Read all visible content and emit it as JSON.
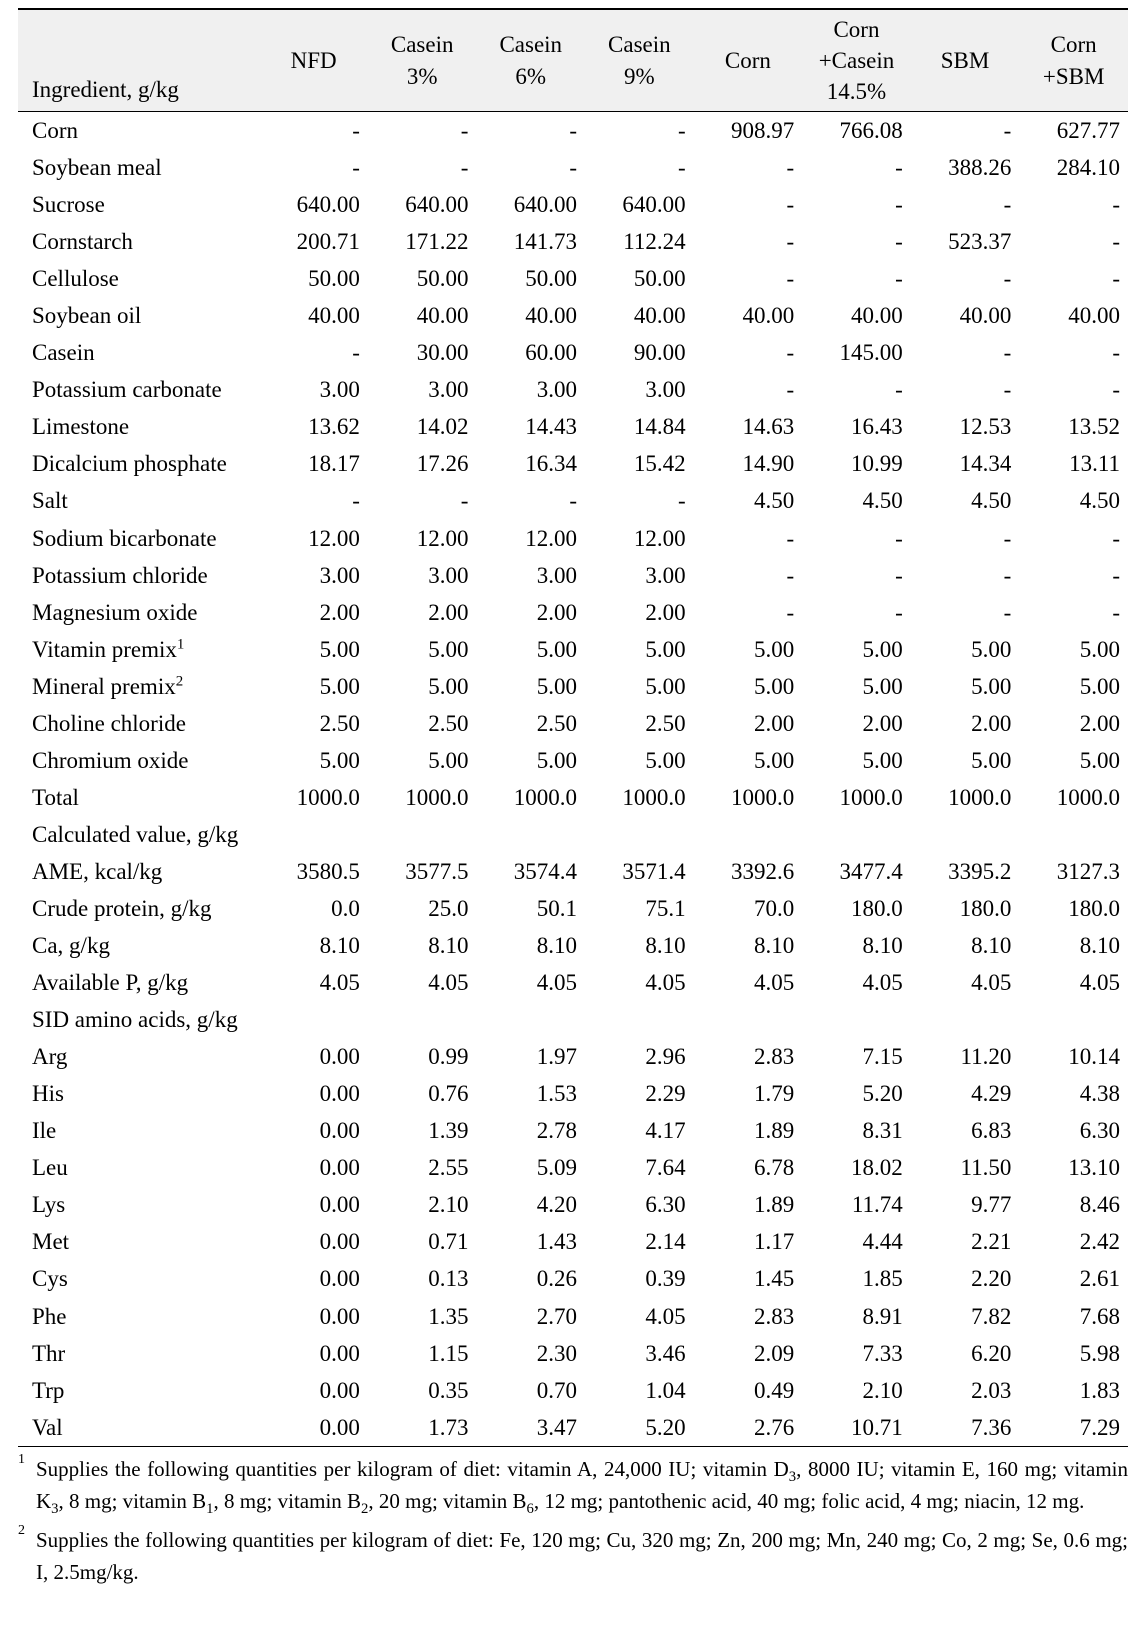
{
  "table": {
    "label_header": "Ingredient, g/kg",
    "columns": [
      "NFD",
      "Casein\n3%",
      "Casein\n6%",
      "Casein\n9%",
      "Corn",
      "Corn\n+Casein\n14.5%",
      "SBM",
      "Corn\n+SBM"
    ],
    "groups": [
      {
        "title": null,
        "rows": [
          {
            "label": "Corn",
            "v": [
              "-",
              "-",
              "-",
              "-",
              "908.97",
              "766.08",
              "-",
              "627.77"
            ]
          },
          {
            "label": "Soybean meal",
            "v": [
              "-",
              "-",
              "-",
              "-",
              "-",
              "-",
              "388.26",
              "284.10"
            ]
          },
          {
            "label": "Sucrose",
            "v": [
              "640.00",
              "640.00",
              "640.00",
              "640.00",
              "-",
              "-",
              "-",
              "-"
            ]
          },
          {
            "label": "Cornstarch",
            "v": [
              "200.71",
              "171.22",
              "141.73",
              "112.24",
              "-",
              "-",
              "523.37",
              "-"
            ]
          },
          {
            "label": "Cellulose",
            "v": [
              "50.00",
              "50.00",
              "50.00",
              "50.00",
              "-",
              "-",
              "-",
              "-"
            ]
          },
          {
            "label": "Soybean oil",
            "v": [
              "40.00",
              "40.00",
              "40.00",
              "40.00",
              "40.00",
              "40.00",
              "40.00",
              "40.00"
            ]
          },
          {
            "label": "Casein",
            "v": [
              "-",
              "30.00",
              "60.00",
              "90.00",
              "-",
              "145.00",
              "-",
              "-"
            ]
          },
          {
            "label": "Potassium carbonate",
            "v": [
              "3.00",
              "3.00",
              "3.00",
              "3.00",
              "-",
              "-",
              "-",
              "-"
            ]
          },
          {
            "label": "Limestone",
            "v": [
              "13.62",
              "14.02",
              "14.43",
              "14.84",
              "14.63",
              "16.43",
              "12.53",
              "13.52"
            ]
          },
          {
            "label": "Dicalcium phosphate",
            "v": [
              "18.17",
              "17.26",
              "16.34",
              "15.42",
              "14.90",
              "10.99",
              "14.34",
              "13.11"
            ]
          },
          {
            "label": "Salt",
            "v": [
              "-",
              "-",
              "-",
              "-",
              "4.50",
              "4.50",
              "4.50",
              "4.50"
            ]
          },
          {
            "label": "Sodium bicarbonate",
            "v": [
              "12.00",
              "12.00",
              "12.00",
              "12.00",
              "-",
              "-",
              "-",
              "-"
            ]
          },
          {
            "label": "Potassium chloride",
            "v": [
              "3.00",
              "3.00",
              "3.00",
              "3.00",
              "-",
              "-",
              "-",
              "-"
            ]
          },
          {
            "label": "Magnesium oxide",
            "v": [
              "2.00",
              "2.00",
              "2.00",
              "2.00",
              "-",
              "-",
              "-",
              "-"
            ]
          },
          {
            "label": "Vitamin premix",
            "sup": "1",
            "v": [
              "5.00",
              "5.00",
              "5.00",
              "5.00",
              "5.00",
              "5.00",
              "5.00",
              "5.00"
            ]
          },
          {
            "label": "Mineral premix",
            "sup": "2",
            "v": [
              "5.00",
              "5.00",
              "5.00",
              "5.00",
              "5.00",
              "5.00",
              "5.00",
              "5.00"
            ]
          },
          {
            "label": "Choline chloride",
            "v": [
              "2.50",
              "2.50",
              "2.50",
              "2.50",
              "2.00",
              "2.00",
              "2.00",
              "2.00"
            ]
          },
          {
            "label": "Chromium oxide",
            "v": [
              "5.00",
              "5.00",
              "5.00",
              "5.00",
              "5.00",
              "5.00",
              "5.00",
              "5.00"
            ]
          },
          {
            "label": "Total",
            "v": [
              "1000.0",
              "1000.0",
              "1000.0",
              "1000.0",
              "1000.0",
              "1000.0",
              "1000.0",
              "1000.0"
            ]
          }
        ]
      },
      {
        "title": "Calculated value, g/kg",
        "rows": [
          {
            "label": "AME, kcal/kg",
            "v": [
              "3580.5",
              "3577.5",
              "3574.4",
              "3571.4",
              "3392.6",
              "3477.4",
              "3395.2",
              "3127.3"
            ]
          },
          {
            "label": "Crude protein, g/kg",
            "v": [
              "0.0",
              "25.0",
              "50.1",
              "75.1",
              "70.0",
              "180.0",
              "180.0",
              "180.0"
            ]
          },
          {
            "label": "Ca, g/kg",
            "v": [
              "8.10",
              "8.10",
              "8.10",
              "8.10",
              "8.10",
              "8.10",
              "8.10",
              "8.10"
            ]
          },
          {
            "label": "Available P, g/kg",
            "v": [
              "4.05",
              "4.05",
              "4.05",
              "4.05",
              "4.05",
              "4.05",
              "4.05",
              "4.05"
            ]
          }
        ]
      },
      {
        "title": "SID amino acids, g/kg",
        "rows": [
          {
            "label": "Arg",
            "v": [
              "0.00",
              "0.99",
              "1.97",
              "2.96",
              "2.83",
              "7.15",
              "11.20",
              "10.14"
            ]
          },
          {
            "label": "His",
            "v": [
              "0.00",
              "0.76",
              "1.53",
              "2.29",
              "1.79",
              "5.20",
              "4.29",
              "4.38"
            ]
          },
          {
            "label": "Ile",
            "v": [
              "0.00",
              "1.39",
              "2.78",
              "4.17",
              "1.89",
              "8.31",
              "6.83",
              "6.30"
            ]
          },
          {
            "label": "Leu",
            "v": [
              "0.00",
              "2.55",
              "5.09",
              "7.64",
              "6.78",
              "18.02",
              "11.50",
              "13.10"
            ]
          },
          {
            "label": "Lys",
            "v": [
              "0.00",
              "2.10",
              "4.20",
              "6.30",
              "1.89",
              "11.74",
              "9.77",
              "8.46"
            ]
          },
          {
            "label": "Met",
            "v": [
              "0.00",
              "0.71",
              "1.43",
              "2.14",
              "1.17",
              "4.44",
              "2.21",
              "2.42"
            ]
          },
          {
            "label": "Cys",
            "v": [
              "0.00",
              "0.13",
              "0.26",
              "0.39",
              "1.45",
              "1.85",
              "2.20",
              "2.61"
            ]
          },
          {
            "label": "Phe",
            "v": [
              "0.00",
              "1.35",
              "2.70",
              "4.05",
              "2.83",
              "8.91",
              "7.82",
              "7.68"
            ]
          },
          {
            "label": "Thr",
            "v": [
              "0.00",
              "1.15",
              "2.30",
              "3.46",
              "2.09",
              "7.33",
              "6.20",
              "5.98"
            ]
          },
          {
            "label": "Trp",
            "v": [
              "0.00",
              "0.35",
              "0.70",
              "1.04",
              "0.49",
              "2.10",
              "2.03",
              "1.83"
            ]
          },
          {
            "label": "Val",
            "v": [
              "0.00",
              "1.73",
              "3.47",
              "5.20",
              "2.76",
              "10.71",
              "7.36",
              "7.29"
            ]
          }
        ]
      }
    ]
  },
  "footnotes": [
    {
      "marker": "1",
      "html": "Supplies the following quantities per kilogram of diet: vitamin A, 24,000 IU; vitamin D<sub class=\"s\">3</sub>, 8000 IU; vitamin E, 160 mg; vitamin K<sub class=\"s\">3</sub>, 8 mg; vitamin B<sub class=\"s\">1</sub>, 8 mg; vitamin B<sub class=\"s\">2</sub>, 20 mg; vitamin B<sub class=\"s\">6</sub>, 12 mg; pantothenic acid, 40 mg; folic acid, 4 mg; niacin, 12 mg."
    },
    {
      "marker": "2",
      "html": "Supplies the following quantities per kilogram of diet: Fe, 120 mg; Cu, 320 mg; Zn, 200 mg; Mn, 240 mg; Co, 2 mg; Se, 0.6 mg; I, 2.5mg/kg."
    }
  ]
}
